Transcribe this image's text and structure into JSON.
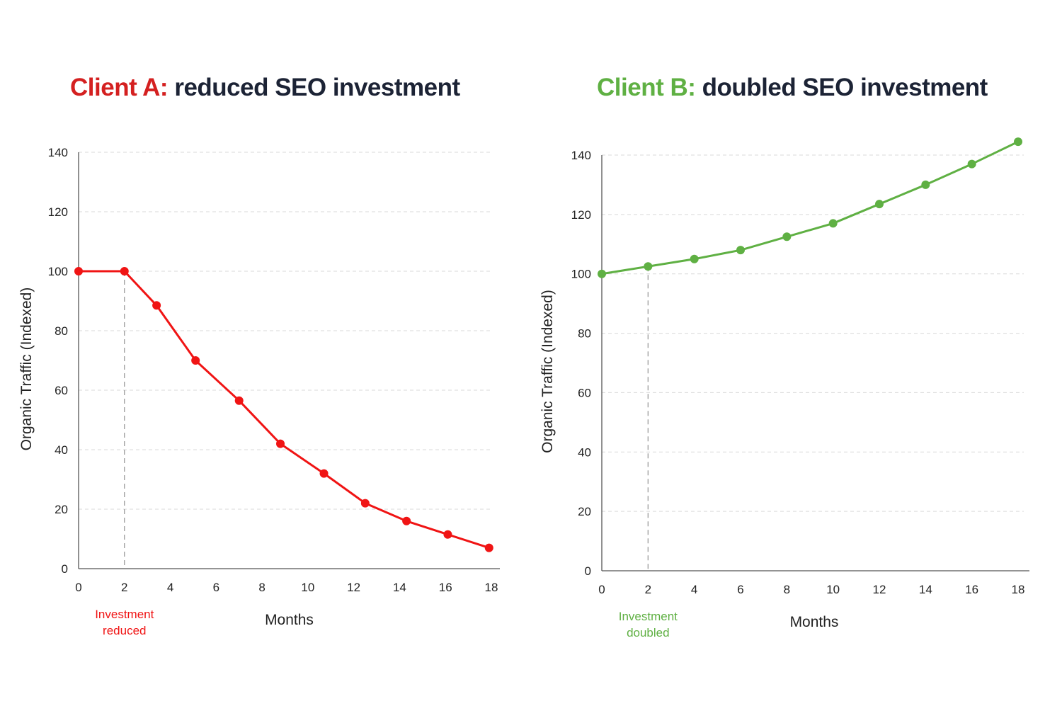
{
  "chart_data": [
    {
      "type": "line",
      "title_prefix": "Client A:",
      "title_rest": " reduced SEO investment",
      "xlabel": "Months",
      "ylabel": "Organic Traffic (Indexed)",
      "x_ticks": [
        "0",
        "2",
        "4",
        "6",
        "8",
        "10",
        "12",
        "14",
        "16",
        "18"
      ],
      "y_ticks": [
        "0",
        "20",
        "40",
        "60",
        "80",
        "100",
        "120",
        "140"
      ],
      "xlim": [
        0,
        18
      ],
      "ylim": [
        0,
        140
      ],
      "grid": true,
      "color": "#f01414",
      "series": [
        {
          "x": [
            0,
            2,
            3.4,
            5.1,
            7,
            8.8,
            10.7,
            12.5,
            14.3,
            16.1,
            17.9
          ],
          "y": [
            100,
            100,
            88.5,
            70,
            56.5,
            42,
            32,
            22,
            16,
            11.5,
            7
          ]
        }
      ],
      "marker": {
        "x": 2,
        "line1": "Investment",
        "line2": "reduced"
      }
    },
    {
      "type": "line",
      "title_prefix": "Client B:",
      "title_rest": " doubled SEO investment",
      "xlabel": "Months",
      "ylabel": "Organic Traffic (Indexed)",
      "x_ticks": [
        "0",
        "2",
        "4",
        "6",
        "8",
        "10",
        "12",
        "14",
        "16",
        "18"
      ],
      "y_ticks": [
        "0",
        "20",
        "40",
        "60",
        "80",
        "100",
        "120",
        "140"
      ],
      "xlim": [
        0,
        18
      ],
      "ylim": [
        0,
        140
      ],
      "grid": true,
      "color": "#5fb043",
      "series": [
        {
          "x": [
            0,
            2,
            4,
            6,
            8,
            10,
            12,
            14,
            16,
            18
          ],
          "y": [
            100,
            102.5,
            105,
            108,
            112.5,
            117,
            123.5,
            130,
            137,
            144.5
          ]
        }
      ],
      "marker": {
        "x": 2,
        "line1": "Investment",
        "line2": "doubled"
      }
    }
  ]
}
